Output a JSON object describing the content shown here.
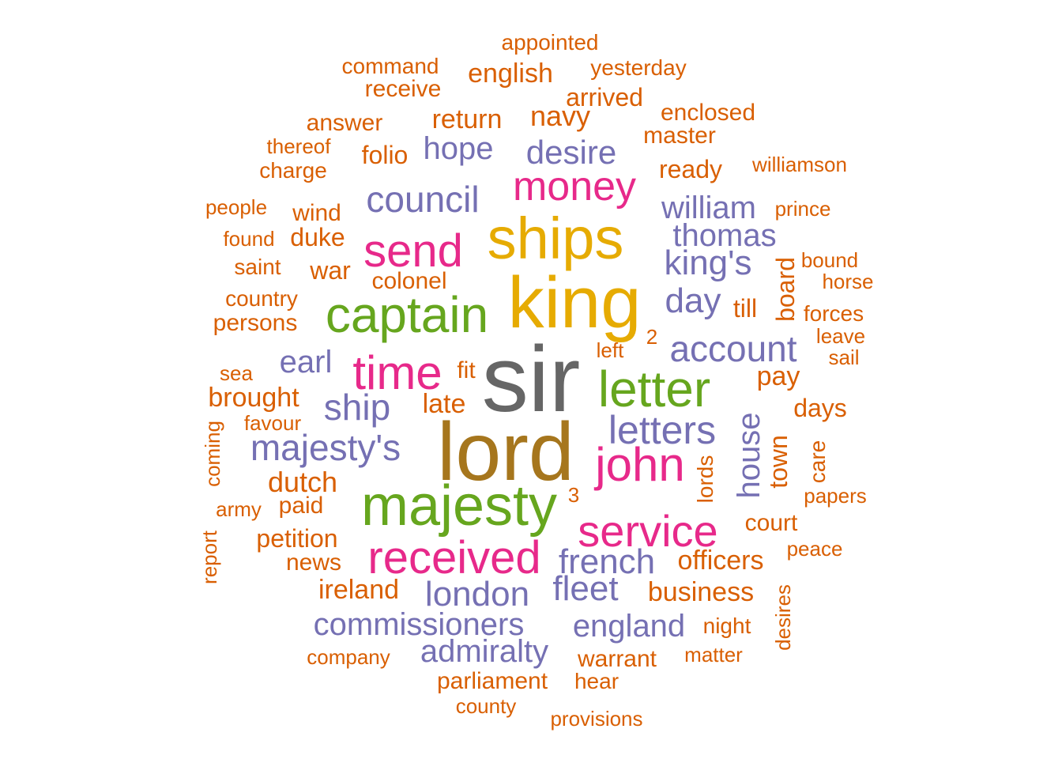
{
  "palette": {
    "orange": "#D95F02",
    "purple": "#7570B3",
    "magenta": "#E7298A",
    "green": "#66A61E",
    "gold": "#E6AB02",
    "brown": "#A6761D",
    "gray": "#666666"
  },
  "words": [
    {
      "text": "sir",
      "color": "gray"
    },
    {
      "text": "lord",
      "color": "brown"
    },
    {
      "text": "king",
      "color": "gold"
    },
    {
      "text": "ships",
      "color": "gold"
    },
    {
      "text": "majesty",
      "color": "green"
    },
    {
      "text": "captain",
      "color": "green"
    },
    {
      "text": "letter",
      "color": "green"
    },
    {
      "text": "received",
      "color": "magenta"
    },
    {
      "text": "service",
      "color": "magenta"
    },
    {
      "text": "time",
      "color": "magenta"
    },
    {
      "text": "send",
      "color": "magenta"
    },
    {
      "text": "money",
      "color": "magenta"
    },
    {
      "text": "john",
      "color": "magenta"
    },
    {
      "text": "majesty's",
      "color": "purple"
    },
    {
      "text": "letters",
      "color": "purple"
    },
    {
      "text": "account",
      "color": "purple"
    },
    {
      "text": "council",
      "color": "purple"
    },
    {
      "text": "london",
      "color": "purple"
    },
    {
      "text": "french",
      "color": "purple"
    },
    {
      "text": "fleet",
      "color": "purple"
    },
    {
      "text": "commissioners",
      "color": "purple"
    },
    {
      "text": "ship",
      "color": "purple"
    },
    {
      "text": "desire",
      "color": "purple"
    },
    {
      "text": "king's",
      "color": "purple"
    },
    {
      "text": "admiralty",
      "color": "purple"
    },
    {
      "text": "england",
      "color": "purple"
    },
    {
      "text": "day",
      "color": "purple"
    },
    {
      "text": "william",
      "color": "purple"
    },
    {
      "text": "thomas",
      "color": "purple"
    },
    {
      "text": "hope",
      "color": "purple"
    },
    {
      "text": "earl",
      "color": "purple"
    },
    {
      "text": "house",
      "color": "purple"
    },
    {
      "text": "appointed",
      "color": "orange"
    },
    {
      "text": "command",
      "color": "orange"
    },
    {
      "text": "english",
      "color": "orange"
    },
    {
      "text": "yesterday",
      "color": "orange"
    },
    {
      "text": "receive",
      "color": "orange"
    },
    {
      "text": "arrived",
      "color": "orange"
    },
    {
      "text": "enclosed",
      "color": "orange"
    },
    {
      "text": "answer",
      "color": "orange"
    },
    {
      "text": "return",
      "color": "orange"
    },
    {
      "text": "navy",
      "color": "orange"
    },
    {
      "text": "master",
      "color": "orange"
    },
    {
      "text": "thereof",
      "color": "orange"
    },
    {
      "text": "folio",
      "color": "orange"
    },
    {
      "text": "charge",
      "color": "orange"
    },
    {
      "text": "ready",
      "color": "orange"
    },
    {
      "text": "williamson",
      "color": "orange"
    },
    {
      "text": "people",
      "color": "orange"
    },
    {
      "text": "wind",
      "color": "orange"
    },
    {
      "text": "prince",
      "color": "orange"
    },
    {
      "text": "found",
      "color": "orange"
    },
    {
      "text": "duke",
      "color": "orange"
    },
    {
      "text": "saint",
      "color": "orange"
    },
    {
      "text": "war",
      "color": "orange"
    },
    {
      "text": "colonel",
      "color": "orange"
    },
    {
      "text": "board",
      "color": "orange"
    },
    {
      "text": "bound",
      "color": "orange"
    },
    {
      "text": "horse",
      "color": "orange"
    },
    {
      "text": "country",
      "color": "orange"
    },
    {
      "text": "persons",
      "color": "orange"
    },
    {
      "text": "till",
      "color": "orange"
    },
    {
      "text": "forces",
      "color": "orange"
    },
    {
      "text": "2",
      "color": "orange"
    },
    {
      "text": "leave",
      "color": "orange"
    },
    {
      "text": "left",
      "color": "orange"
    },
    {
      "text": "sail",
      "color": "orange"
    },
    {
      "text": "sea",
      "color": "orange"
    },
    {
      "text": "fit",
      "color": "orange"
    },
    {
      "text": "pay",
      "color": "orange"
    },
    {
      "text": "brought",
      "color": "orange"
    },
    {
      "text": "late",
      "color": "orange"
    },
    {
      "text": "days",
      "color": "orange"
    },
    {
      "text": "favour",
      "color": "orange"
    },
    {
      "text": "coming",
      "color": "orange"
    },
    {
      "text": "town",
      "color": "orange"
    },
    {
      "text": "care",
      "color": "orange"
    },
    {
      "text": "dutch",
      "color": "orange"
    },
    {
      "text": "lords",
      "color": "orange"
    },
    {
      "text": "army",
      "color": "orange"
    },
    {
      "text": "paid",
      "color": "orange"
    },
    {
      "text": "3",
      "color": "orange"
    },
    {
      "text": "papers",
      "color": "orange"
    },
    {
      "text": "court",
      "color": "orange"
    },
    {
      "text": "report",
      "color": "orange"
    },
    {
      "text": "petition",
      "color": "orange"
    },
    {
      "text": "peace",
      "color": "orange"
    },
    {
      "text": "news",
      "color": "orange"
    },
    {
      "text": "officers",
      "color": "orange"
    },
    {
      "text": "ireland",
      "color": "orange"
    },
    {
      "text": "business",
      "color": "orange"
    },
    {
      "text": "desires",
      "color": "orange"
    },
    {
      "text": "night",
      "color": "orange"
    },
    {
      "text": "company",
      "color": "orange"
    },
    {
      "text": "warrant",
      "color": "orange"
    },
    {
      "text": "matter",
      "color": "orange"
    },
    {
      "text": "parliament",
      "color": "orange"
    },
    {
      "text": "hear",
      "color": "orange"
    },
    {
      "text": "county",
      "color": "orange"
    },
    {
      "text": "provisions",
      "color": "orange"
    }
  ]
}
